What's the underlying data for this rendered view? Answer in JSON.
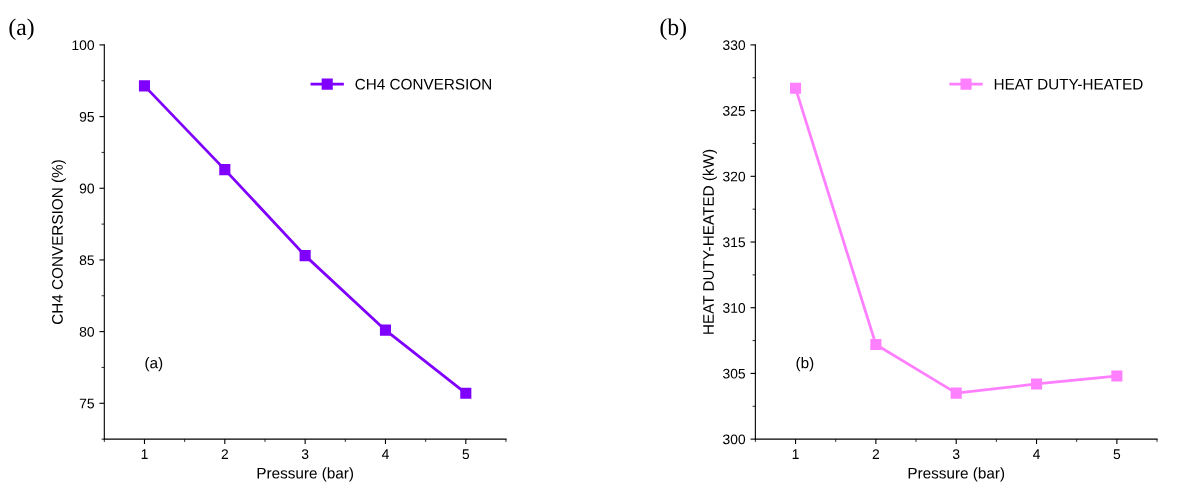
{
  "chart_data": [
    {
      "type": "line",
      "title": "(a)",
      "xlabel": "Pressure (bar)",
      "ylabel": "CH4 CONVERSION (%)",
      "x": [
        1,
        2,
        3,
        4,
        5
      ],
      "series": [
        {
          "name": "CH4 CONVERSION",
          "color": "#8000ff",
          "values": [
            97.14,
            91.3,
            85.3,
            80.1,
            75.7
          ]
        }
      ],
      "xlim": [
        0.5,
        5.5
      ],
      "xticks": [
        1,
        2,
        3,
        4,
        5
      ],
      "ylim": [
        72.5,
        100
      ],
      "yticks": [
        75,
        80,
        85,
        90,
        95,
        100
      ],
      "marker": "square",
      "line_style": "solid",
      "legend": "top right",
      "grid": false,
      "annotations": [
        "(a)"
      ]
    },
    {
      "type": "line",
      "title": "(b)",
      "xlabel": "Pressure (bar)",
      "ylabel": "HEAT DUTY-HEATED (kW)",
      "x": [
        1,
        2,
        3,
        4,
        5
      ],
      "series": [
        {
          "name": "HEAT DUTY-HEATED",
          "color": "#ff80ff",
          "values": [
            326.7,
            307.2,
            303.5,
            304.2,
            304.8
          ]
        }
      ],
      "xlim": [
        0.5,
        5.5
      ],
      "xticks": [
        1,
        2,
        3,
        4,
        5
      ],
      "ylim": [
        300,
        330
      ],
      "yticks": [
        300,
        305,
        310,
        315,
        320,
        325,
        330
      ],
      "marker": "square",
      "line_style": "solid",
      "legend": "top right",
      "grid": false,
      "annotations": [
        "(b)"
      ]
    }
  ]
}
